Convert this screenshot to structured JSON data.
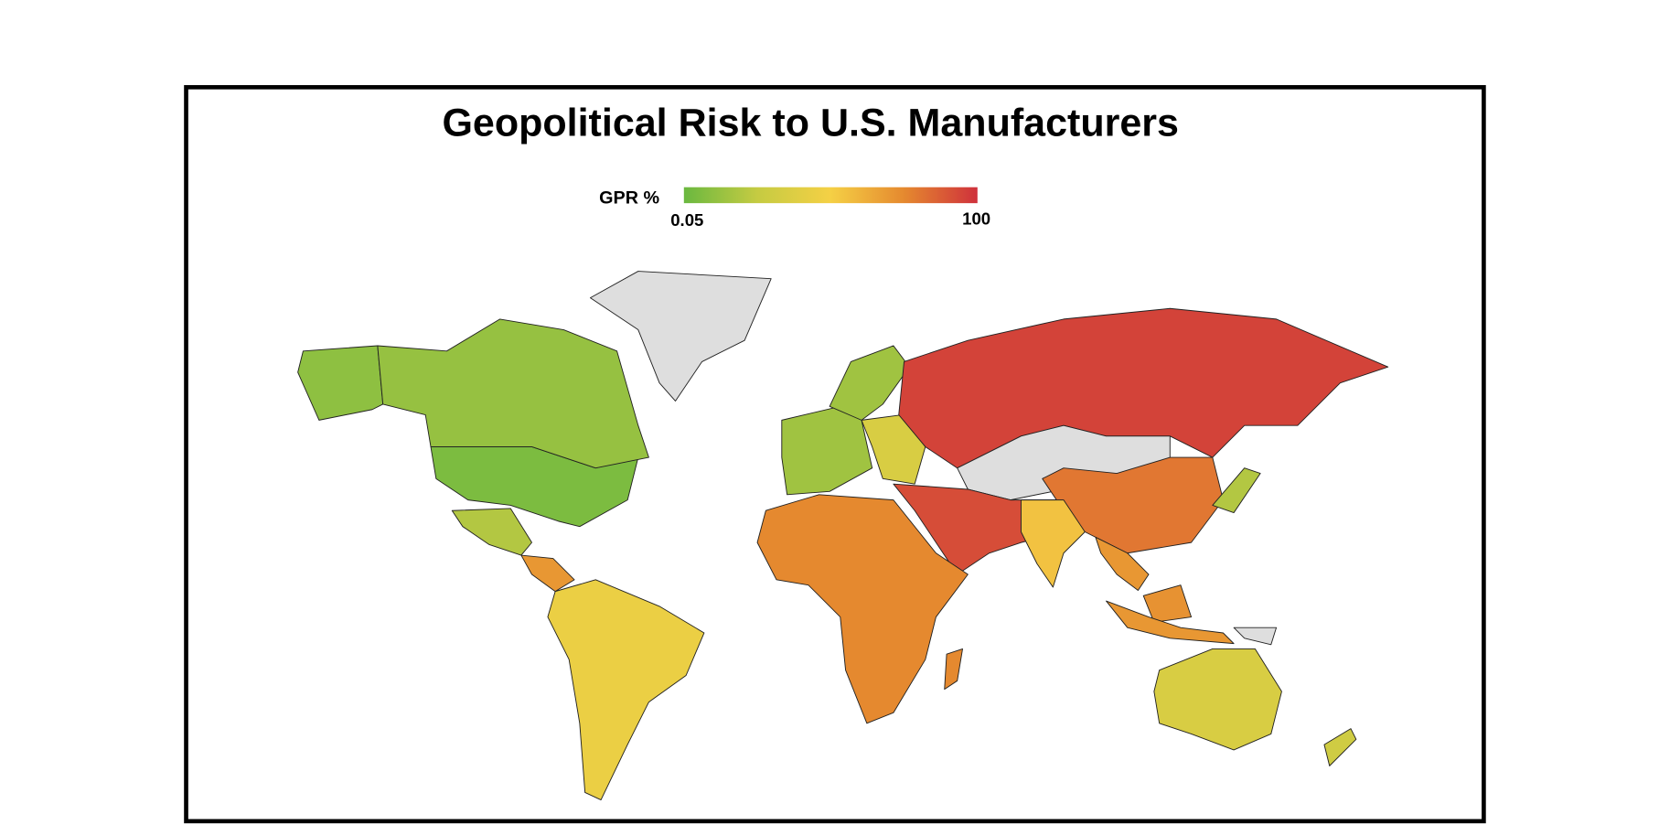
{
  "chart_data": {
    "type": "choropleth",
    "title": "Geopolitical Risk to U.S. Manufacturers",
    "colorbar": {
      "label": "GPR %",
      "min": 0.05,
      "max": 100,
      "colors": [
        "#6ab840",
        "#c5cb42",
        "#f5d045",
        "#e5892f",
        "#cf313c"
      ]
    },
    "no_data_color": "#dedede",
    "values": [
      5,
      10,
      12,
      20,
      70,
      45,
      null,
      15,
      15,
      35,
      95,
      null,
      92,
      75,
      75,
      80,
      55,
      70,
      72,
      70,
      35,
      20,
      30,
      null
    ]
  }
}
